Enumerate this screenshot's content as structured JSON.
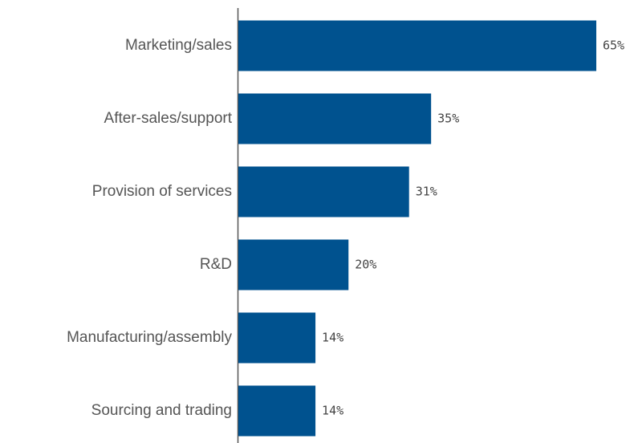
{
  "chart_data": {
    "type": "bar",
    "orientation": "horizontal",
    "categories": [
      "Marketing/sales",
      "After-sales/support",
      "Provision of services",
      "R&D",
      "Manufacturing/assembly",
      "Sourcing and trading"
    ],
    "values": [
      65,
      35,
      31,
      20,
      14,
      14
    ],
    "value_labels": [
      "65%",
      "35%",
      "31%",
      "20%",
      "14%",
      "14%"
    ],
    "title": "",
    "xlabel": "",
    "ylabel": "",
    "xlim": [
      0,
      70
    ],
    "grid": false,
    "legend": "none",
    "colors": {
      "bar": "#00528f",
      "axis": "#555555"
    }
  }
}
